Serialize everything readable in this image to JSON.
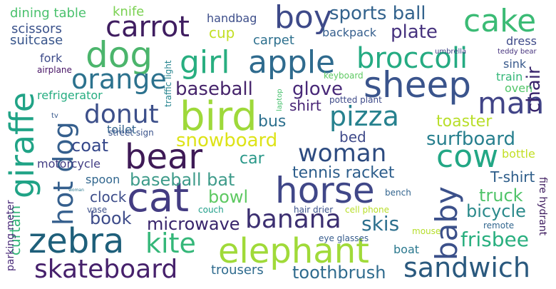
{
  "words": [
    {
      "text": "dog",
      "color": "#4bb56c"
    },
    {
      "text": "carrot",
      "color": "#3f1d60"
    },
    {
      "text": "boy",
      "color": "#3e4a89"
    },
    {
      "text": "cake",
      "color": "#3bbb75"
    },
    {
      "text": "sports ball",
      "color": "#33638d"
    },
    {
      "text": "apple",
      "color": "#2f6b8e"
    },
    {
      "text": "girl",
      "color": "#28ae80"
    },
    {
      "text": "broccoli",
      "color": "#25ab82"
    },
    {
      "text": "sheep",
      "color": "#3a548c"
    },
    {
      "text": "orange",
      "color": "#2c728e"
    },
    {
      "text": "plate",
      "color": "#46327e"
    },
    {
      "text": "bird",
      "color": "#9ed93a"
    },
    {
      "text": "man",
      "color": "#414487"
    },
    {
      "text": "pizza",
      "color": "#26818e"
    },
    {
      "text": "donut",
      "color": "#3c4f8a"
    },
    {
      "text": "baseball",
      "color": "#46246b"
    },
    {
      "text": "glove",
      "color": "#482878"
    },
    {
      "text": "giraffe",
      "color": "#20a386"
    },
    {
      "text": "hot dog",
      "color": "#355f8d"
    },
    {
      "text": "bear",
      "color": "#3e1a56"
    },
    {
      "text": "woman",
      "color": "#2d4b80"
    },
    {
      "text": "cow",
      "color": "#22a785"
    },
    {
      "text": "surfboard",
      "color": "#277f8e"
    },
    {
      "text": "snowboard",
      "color": "#dde318"
    },
    {
      "text": "toaster",
      "color": "#b8de29"
    },
    {
      "text": "cat",
      "color": "#433c82"
    },
    {
      "text": "horse",
      "color": "#404788"
    },
    {
      "text": "baby",
      "color": "#3b508a"
    },
    {
      "text": "zebra",
      "color": "#1e5f7a"
    },
    {
      "text": "elephant",
      "color": "#a0da39"
    },
    {
      "text": "banana",
      "color": "#3c2f71"
    },
    {
      "text": "kite",
      "color": "#35b779"
    },
    {
      "text": "skateboard",
      "color": "#46206b"
    },
    {
      "text": "sandwich",
      "color": "#2a597e"
    },
    {
      "text": "toothbrush",
      "color": "#2f6b8e"
    },
    {
      "text": "frisbee",
      "color": "#29af7f"
    },
    {
      "text": "skis",
      "color": "#2d708e"
    },
    {
      "text": "microwave",
      "color": "#38246b"
    },
    {
      "text": "baseball bat",
      "color": "#3e9b8a"
    },
    {
      "text": "tennis racket",
      "color": "#2c5d8b"
    },
    {
      "text": "bowl",
      "color": "#5ec962"
    },
    {
      "text": "truck",
      "color": "#50c46a"
    },
    {
      "text": "bicycle",
      "color": "#2b8a8b"
    },
    {
      "text": "book",
      "color": "#3e4c8a"
    },
    {
      "text": "coat",
      "color": "#35478a"
    },
    {
      "text": "motorcycle",
      "color": "#433e85"
    },
    {
      "text": "bus",
      "color": "#2d708e"
    },
    {
      "text": "bed",
      "color": "#3f4a8a"
    },
    {
      "text": "car",
      "color": "#2a9889"
    },
    {
      "text": "T-shirt",
      "color": "#2c5c89"
    },
    {
      "text": "chair",
      "color": "#38246b"
    },
    {
      "text": "shirt",
      "color": "#482475"
    },
    {
      "text": "spoon",
      "color": "#31668e"
    },
    {
      "text": "clock",
      "color": "#3d4d8a"
    },
    {
      "text": "curtain",
      "color": "#34b679"
    },
    {
      "text": "boat",
      "color": "#2a788e"
    },
    {
      "text": "trousers",
      "color": "#2f6b8e"
    },
    {
      "text": "dining table",
      "color": "#4ac16d"
    },
    {
      "text": "knife",
      "color": "#7ad151"
    },
    {
      "text": "handbag",
      "color": "#3d4e8a"
    },
    {
      "text": "scissors",
      "color": "#3b528b"
    },
    {
      "text": "suitcase",
      "color": "#39568c"
    },
    {
      "text": "cup",
      "color": "#c2df23"
    },
    {
      "text": "carpet",
      "color": "#2d708e"
    },
    {
      "text": "backpack",
      "color": "#355e8d"
    },
    {
      "text": "dress",
      "color": "#3e4a89"
    },
    {
      "text": "umbrella",
      "color": "#414487"
    },
    {
      "text": "teddy bear",
      "color": "#46337e"
    },
    {
      "text": "sink",
      "color": "#38598c"
    },
    {
      "text": "fork",
      "color": "#3e4c8a"
    },
    {
      "text": "airplane",
      "color": "#471365"
    },
    {
      "text": "refrigerator",
      "color": "#26ad81"
    },
    {
      "text": "toilet",
      "color": "#33638d"
    },
    {
      "text": "traffic light",
      "color": "#25848e"
    },
    {
      "text": "keyboard",
      "color": "#5ec962"
    },
    {
      "text": "laptop",
      "color": "#48c16e"
    },
    {
      "text": "potted plant",
      "color": "#3e4a89"
    },
    {
      "text": "train",
      "color": "#35b779"
    },
    {
      "text": "oven",
      "color": "#52c569"
    },
    {
      "text": "street sign",
      "color": "#3a538b"
    },
    {
      "text": "tv",
      "color": "#38598c"
    },
    {
      "text": "bottle",
      "color": "#c2df23"
    },
    {
      "text": "fire hydrant",
      "color": "#3f1d60"
    },
    {
      "text": "parking meter",
      "color": "#4b2c7a"
    },
    {
      "text": "vase",
      "color": "#3c4f8a"
    },
    {
      "text": "woman",
      "color": "#2a788e"
    },
    {
      "text": "couch",
      "color": "#1f9e89"
    },
    {
      "text": "hair drier",
      "color": "#3b528b"
    },
    {
      "text": "cell phone",
      "color": "#b8de29"
    },
    {
      "text": "bench",
      "color": "#32648e"
    },
    {
      "text": "mouse",
      "color": "#b5de2b"
    },
    {
      "text": "eye glasses",
      "color": "#365c8d"
    },
    {
      "text": "remote",
      "color": "#31668e"
    }
  ]
}
